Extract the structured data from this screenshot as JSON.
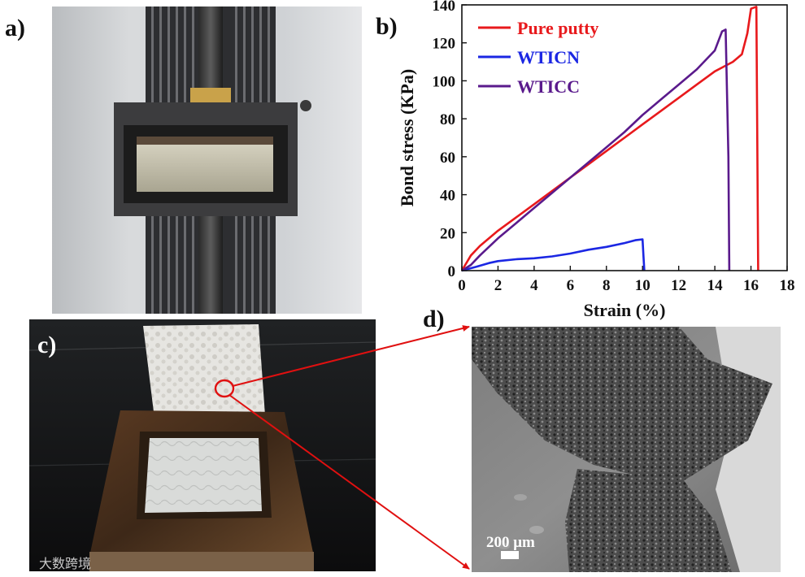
{
  "panels": {
    "a": {
      "label": "a)"
    },
    "b": {
      "label": "b)"
    },
    "c": {
      "label": "c)"
    },
    "d": {
      "label": "d)"
    }
  },
  "scale_bar": {
    "text": "200 μm"
  },
  "watermark": {
    "text": "大数跨境"
  },
  "colors": {
    "pure_putty": "#e8191c",
    "wticn": "#1b27e3",
    "wticc": "#5a1a8c",
    "annotation": "#e01010"
  },
  "chart_data": {
    "type": "line",
    "xlabel": "Strain (%)",
    "ylabel": "Bond stress (KPa)",
    "xlim": [
      0,
      18
    ],
    "ylim": [
      0,
      140
    ],
    "xticks": [
      0,
      2,
      4,
      6,
      8,
      10,
      12,
      14,
      16,
      18
    ],
    "yticks": [
      0,
      20,
      40,
      60,
      80,
      100,
      120,
      140
    ],
    "legend_position": "top-left",
    "grid": false,
    "series": [
      {
        "name": "Pure putty",
        "color": "#e8191c",
        "x": [
          0,
          0.5,
          1,
          2,
          3,
          4,
          5,
          6,
          7,
          8,
          9,
          10,
          11,
          12,
          13,
          14,
          15,
          15.5,
          15.8,
          16.0,
          16.3,
          16.35,
          16.4
        ],
        "y": [
          0,
          8,
          13,
          21,
          28,
          35,
          42,
          49,
          56,
          63,
          70,
          77,
          84,
          91,
          98,
          105,
          110,
          114,
          125,
          138,
          139,
          70,
          0
        ]
      },
      {
        "name": "WTICN",
        "color": "#1b27e3",
        "x": [
          0,
          0.8,
          1.5,
          2,
          3,
          4,
          5,
          6,
          7,
          8,
          9,
          9.6,
          10.0,
          10.05,
          10.1
        ],
        "y": [
          0,
          2,
          4,
          5,
          6,
          6.5,
          7.5,
          9,
          11,
          12.5,
          14.5,
          16,
          16.5,
          8,
          0
        ]
      },
      {
        "name": "WTICC",
        "color": "#5a1a8c",
        "x": [
          0,
          0.5,
          1,
          2,
          3,
          4,
          5,
          6,
          7,
          8,
          9,
          10,
          11,
          12,
          13,
          14,
          14.4,
          14.6,
          14.75,
          14.8
        ],
        "y": [
          0,
          3,
          8,
          17,
          25,
          33,
          41,
          49,
          57,
          65,
          73,
          82,
          90,
          98,
          106,
          116,
          126,
          127,
          60,
          0
        ]
      }
    ]
  }
}
